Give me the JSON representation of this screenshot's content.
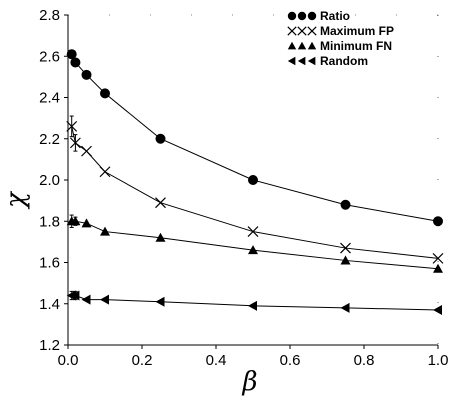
{
  "chart_data": {
    "type": "line",
    "title": "",
    "xlabel": "β",
    "ylabel": "χ",
    "xlim": [
      0.0,
      1.0
    ],
    "ylim": [
      1.2,
      2.8
    ],
    "x_ticks": [
      "0.0",
      "0.2",
      "0.4",
      "0.6",
      "0.8",
      "1.0"
    ],
    "y_ticks": [
      "1.2",
      "1.4",
      "1.6",
      "1.8",
      "2.0",
      "2.2",
      "2.4",
      "2.6",
      "2.8"
    ],
    "grid": false,
    "legend_position": "top-right",
    "series": [
      {
        "name": "Ratio",
        "marker": "circle",
        "x": [
          0.01,
          0.02,
          0.05,
          0.1,
          0.25,
          0.5,
          0.75,
          1.0
        ],
        "y": [
          2.61,
          2.57,
          2.51,
          2.42,
          2.2,
          2.0,
          1.88,
          1.8
        ],
        "err": [
          0.02,
          0.0,
          0.0,
          0.0,
          0.0,
          0.0,
          0.0,
          0.0
        ]
      },
      {
        "name": "Maximum FP",
        "marker": "x",
        "x": [
          0.01,
          0.02,
          0.05,
          0.1,
          0.25,
          0.5,
          0.75,
          1.0
        ],
        "y": [
          2.26,
          2.18,
          2.14,
          2.04,
          1.89,
          1.75,
          1.67,
          1.62
        ],
        "err": [
          0.05,
          0.04,
          0.0,
          0.0,
          0.0,
          0.0,
          0.0,
          0.0
        ]
      },
      {
        "name": "Minimum FN",
        "marker": "triangle",
        "x": [
          0.01,
          0.02,
          0.05,
          0.1,
          0.25,
          0.5,
          0.75,
          1.0
        ],
        "y": [
          1.8,
          1.8,
          1.79,
          1.75,
          1.72,
          1.66,
          1.61,
          1.57
        ],
        "err": [
          0.03,
          0.02,
          0.0,
          0.0,
          0.0,
          0.0,
          0.0,
          0.0
        ]
      },
      {
        "name": "Random",
        "marker": "triangle-left",
        "x": [
          0.01,
          0.02,
          0.05,
          0.1,
          0.25,
          0.5,
          0.75,
          1.0
        ],
        "y": [
          1.44,
          1.44,
          1.42,
          1.42,
          1.41,
          1.39,
          1.38,
          1.37
        ],
        "err": [
          0.02,
          0.02,
          0.0,
          0.0,
          0.0,
          0.0,
          0.0,
          0.0
        ]
      }
    ]
  }
}
